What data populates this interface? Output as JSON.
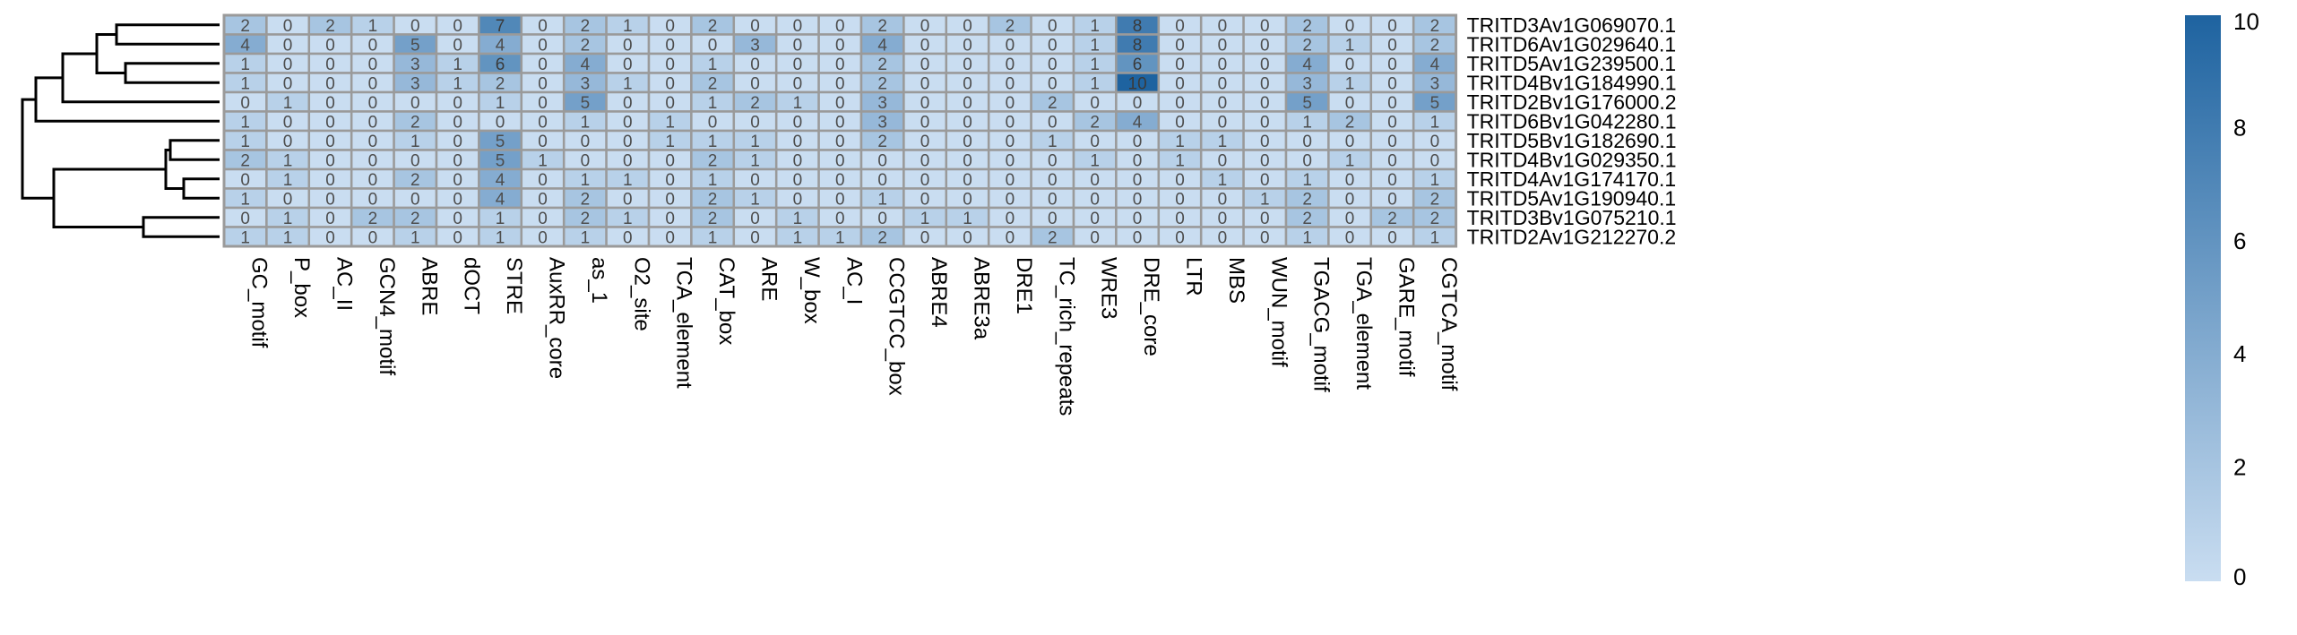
{
  "chart_data": {
    "type": "heatmap",
    "columns": [
      "GC_motif",
      "P_box",
      "AC_II",
      "GCN4_motif",
      "ABRE",
      "dOCT",
      "STRE",
      "AuxRR_core",
      "as_1",
      "O2_site",
      "TCA_element",
      "CAT_box",
      "ARE",
      "W_box",
      "AC_I",
      "CCGTCC_box",
      "ABRE4",
      "ABRE3a",
      "DRE1",
      "TC_rich_repeats",
      "WRE3",
      "DRE_core",
      "LTR",
      "MBS",
      "WUN_motif",
      "TGACG_motif",
      "TGA_element",
      "GARE_motif",
      "CGTCA_motif"
    ],
    "rows": [
      "TRITD3Av1G069070.1",
      "TRITD6Av1G029640.1",
      "TRITD5Av1G239500.1",
      "TRITD4Bv1G184990.1",
      "TRITD2Bv1G176000.2",
      "TRITD6Bv1G042280.1",
      "TRITD5Bv1G182690.1",
      "TRITD4Bv1G029350.1",
      "TRITD4Av1G174170.1",
      "TRITD5Av1G190940.1",
      "TRITD3Bv1G075210.1",
      "TRITD2Av1G212270.2"
    ],
    "values": [
      [
        2,
        0,
        2,
        1,
        0,
        0,
        7,
        0,
        2,
        1,
        0,
        2,
        0,
        0,
        0,
        2,
        0,
        0,
        2,
        0,
        1,
        8,
        0,
        0,
        0,
        2,
        0,
        0,
        2
      ],
      [
        4,
        0,
        0,
        0,
        5,
        0,
        4,
        0,
        2,
        0,
        0,
        0,
        3,
        0,
        0,
        4,
        0,
        0,
        0,
        0,
        1,
        8,
        0,
        0,
        0,
        2,
        1,
        0,
        2
      ],
      [
        1,
        0,
        0,
        0,
        3,
        1,
        6,
        0,
        4,
        0,
        0,
        1,
        0,
        0,
        0,
        2,
        0,
        0,
        0,
        0,
        1,
        6,
        0,
        0,
        0,
        4,
        0,
        0,
        4
      ],
      [
        1,
        0,
        0,
        0,
        3,
        1,
        2,
        0,
        3,
        1,
        0,
        2,
        0,
        0,
        0,
        2,
        0,
        0,
        0,
        0,
        1,
        10,
        0,
        0,
        0,
        3,
        1,
        0,
        3
      ],
      [
        0,
        1,
        0,
        0,
        0,
        0,
        1,
        0,
        5,
        0,
        0,
        1,
        2,
        1,
        0,
        3,
        0,
        0,
        0,
        2,
        0,
        0,
        0,
        0,
        0,
        5,
        0,
        0,
        5
      ],
      [
        1,
        0,
        0,
        0,
        2,
        0,
        0,
        0,
        1,
        0,
        1,
        0,
        0,
        0,
        0,
        3,
        0,
        0,
        0,
        0,
        2,
        4,
        0,
        0,
        0,
        1,
        2,
        0,
        1
      ],
      [
        1,
        0,
        0,
        0,
        1,
        0,
        5,
        0,
        0,
        0,
        1,
        1,
        1,
        0,
        0,
        2,
        0,
        0,
        0,
        1,
        0,
        0,
        1,
        1,
        0,
        0,
        0,
        0,
        0
      ],
      [
        2,
        1,
        0,
        0,
        0,
        0,
        5,
        1,
        0,
        0,
        0,
        2,
        1,
        0,
        0,
        0,
        0,
        0,
        0,
        0,
        1,
        0,
        1,
        0,
        0,
        0,
        1,
        0,
        0
      ],
      [
        0,
        1,
        0,
        0,
        2,
        0,
        4,
        0,
        1,
        1,
        0,
        1,
        0,
        0,
        0,
        0,
        0,
        0,
        0,
        0,
        0,
        0,
        0,
        1,
        0,
        1,
        0,
        0,
        1
      ],
      [
        1,
        0,
        0,
        0,
        0,
        0,
        4,
        0,
        2,
        0,
        0,
        2,
        1,
        0,
        0,
        1,
        0,
        0,
        0,
        0,
        0,
        0,
        0,
        0,
        1,
        2,
        0,
        0,
        2
      ],
      [
        0,
        1,
        0,
        2,
        2,
        0,
        1,
        0,
        2,
        1,
        0,
        2,
        0,
        1,
        0,
        0,
        1,
        1,
        0,
        0,
        0,
        0,
        0,
        0,
        0,
        2,
        0,
        2,
        2
      ],
      [
        1,
        1,
        0,
        0,
        1,
        0,
        1,
        0,
        1,
        0,
        0,
        1,
        0,
        1,
        1,
        2,
        0,
        0,
        0,
        2,
        0,
        0,
        0,
        0,
        0,
        1,
        0,
        0,
        1
      ]
    ],
    "colorbar": {
      "min": 0,
      "max": 10,
      "ticks": [
        0,
        2,
        4,
        6,
        8,
        10
      ]
    },
    "color_scale": {
      "low": "#c9ddf1",
      "high": "#1e63a0"
    },
    "cell_border_color": "#9a9a9a",
    "dendrogram": "hierarchical clustering tree for rows, drawn on the left",
    "legend_placement": "right"
  }
}
